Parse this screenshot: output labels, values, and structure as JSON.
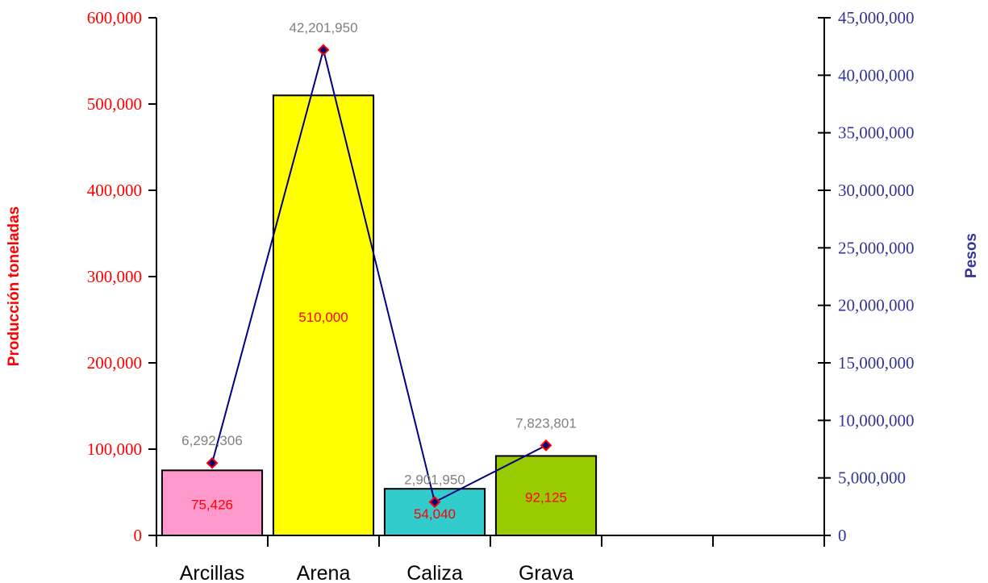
{
  "chart_data": {
    "type": "bar",
    "categories": [
      "Arcillas",
      "Arena",
      "Caliza",
      "Grava",
      "",
      ""
    ],
    "series": [
      {
        "type": "bar",
        "axis": "left",
        "values": [
          75426,
          510000,
          54040,
          92125,
          null,
          null
        ],
        "value_labels": [
          "75,426",
          "510,000",
          "54,040",
          "92,125"
        ],
        "colors": [
          "#ff99cc",
          "#ffff00",
          "#33cccc",
          "#99cc00"
        ],
        "label_color": "#ff0000"
      },
      {
        "type": "line",
        "axis": "right",
        "values": [
          6292306,
          42201950,
          2901950,
          7823801,
          null,
          null
        ],
        "value_labels": [
          "6,292,306",
          "42,201,950",
          "2,901,950",
          "7,823,801"
        ],
        "line_color": "#000080",
        "marker_fill": "#000080",
        "marker_edge": "#ff0000",
        "label_color": "#808080"
      }
    ],
    "ylabel": "Producción toneladas",
    "ylabel_color": "#ff0000",
    "y2label": "Pesos",
    "y2label_color": "#333399",
    "ylim": [
      0,
      600000
    ],
    "y2lim": [
      0,
      45000000
    ],
    "yticks": [
      "0",
      "100,000",
      "200,000",
      "300,000",
      "400,000",
      "500,000",
      "600,000"
    ],
    "y2ticks": [
      "0",
      "5,000,000",
      "10,000,000",
      "15,000,000",
      "20,000,000",
      "25,000,000",
      "30,000,000",
      "35,000,000",
      "40,000,000",
      "45,000,000"
    ],
    "grid": false
  }
}
